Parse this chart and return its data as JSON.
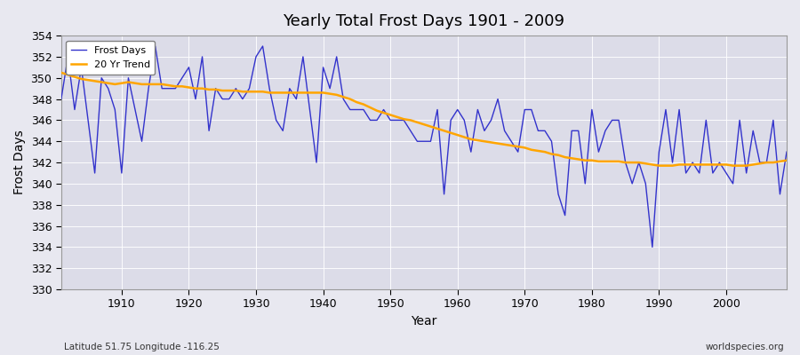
{
  "title": "Yearly Total Frost Days 1901 - 2009",
  "xlabel": "Year",
  "ylabel": "Frost Days",
  "bottom_left_text": "Latitude 51.75 Longitude -116.25",
  "bottom_right_text": "worldspecies.org",
  "legend_entries": [
    "Frost Days",
    "20 Yr Trend"
  ],
  "line_color": "#3333cc",
  "trend_color": "#FFA500",
  "bg_color": "#e8e8f0",
  "plot_bg_color": "#dcdce8",
  "ylim": [
    330,
    354
  ],
  "xlim": [
    1901,
    2009
  ],
  "yticks": [
    330,
    332,
    334,
    336,
    338,
    340,
    342,
    344,
    346,
    348,
    350,
    352,
    354
  ],
  "xticks": [
    1910,
    1920,
    1930,
    1940,
    1950,
    1960,
    1970,
    1980,
    1990,
    2000
  ],
  "years": [
    1901,
    1902,
    1903,
    1904,
    1905,
    1906,
    1907,
    1908,
    1909,
    1910,
    1911,
    1912,
    1913,
    1914,
    1915,
    1916,
    1917,
    1918,
    1919,
    1920,
    1921,
    1922,
    1923,
    1924,
    1925,
    1926,
    1927,
    1928,
    1929,
    1930,
    1931,
    1932,
    1933,
    1934,
    1935,
    1936,
    1937,
    1938,
    1939,
    1940,
    1941,
    1942,
    1943,
    1944,
    1945,
    1946,
    1947,
    1948,
    1949,
    1950,
    1951,
    1952,
    1953,
    1954,
    1955,
    1956,
    1957,
    1958,
    1959,
    1960,
    1961,
    1962,
    1963,
    1964,
    1965,
    1966,
    1967,
    1968,
    1969,
    1970,
    1971,
    1972,
    1973,
    1974,
    1975,
    1976,
    1977,
    1978,
    1979,
    1980,
    1981,
    1982,
    1983,
    1984,
    1985,
    1986,
    1987,
    1988,
    1989,
    1990,
    1991,
    1992,
    1993,
    1994,
    1995,
    1996,
    1997,
    1998,
    1999,
    2000,
    2001,
    2002,
    2003,
    2004,
    2005,
    2006,
    2007,
    2008,
    2009
  ],
  "frost_days": [
    348,
    352,
    347,
    351,
    346,
    341,
    350,
    349,
    347,
    341,
    350,
    347,
    344,
    349,
    353,
    349,
    349,
    349,
    350,
    351,
    348,
    352,
    345,
    349,
    348,
    348,
    349,
    348,
    349,
    352,
    353,
    349,
    346,
    345,
    349,
    348,
    352,
    347,
    342,
    351,
    349,
    352,
    348,
    347,
    347,
    347,
    346,
    346,
    347,
    346,
    346,
    346,
    345,
    344,
    344,
    344,
    347,
    339,
    346,
    347,
    346,
    343,
    347,
    345,
    346,
    348,
    345,
    344,
    343,
    347,
    347,
    345,
    345,
    344,
    339,
    337,
    345,
    345,
    340,
    347,
    343,
    345,
    346,
    346,
    342,
    340,
    342,
    340,
    334,
    343,
    347,
    342,
    347,
    341,
    342,
    341,
    346,
    341,
    342,
    341,
    340,
    346,
    341,
    345,
    342,
    342,
    346,
    339,
    343
  ],
  "trend_values": [
    350.5,
    350.3,
    350.1,
    349.9,
    349.8,
    349.7,
    349.6,
    349.5,
    349.4,
    349.5,
    349.6,
    349.5,
    349.4,
    349.4,
    349.4,
    349.4,
    349.3,
    349.2,
    349.2,
    349.1,
    349.0,
    349.0,
    348.9,
    348.9,
    348.8,
    348.8,
    348.8,
    348.7,
    348.7,
    348.7,
    348.7,
    348.6,
    348.6,
    348.6,
    348.6,
    348.6,
    348.6,
    348.6,
    348.6,
    348.6,
    348.5,
    348.4,
    348.2,
    348.0,
    347.7,
    347.5,
    347.2,
    346.9,
    346.7,
    346.5,
    346.3,
    346.1,
    346.0,
    345.8,
    345.6,
    345.4,
    345.2,
    345.0,
    344.8,
    344.6,
    344.4,
    344.2,
    344.1,
    344.0,
    343.9,
    343.8,
    343.7,
    343.6,
    343.5,
    343.4,
    343.2,
    343.1,
    343.0,
    342.8,
    342.7,
    342.5,
    342.4,
    342.3,
    342.2,
    342.2,
    342.1,
    342.1,
    342.1,
    342.1,
    342.0,
    342.0,
    342.0,
    341.9,
    341.8,
    341.7,
    341.7,
    341.7,
    341.8,
    341.8,
    341.8,
    341.8,
    341.8,
    341.8,
    341.8,
    341.8,
    341.7,
    341.7,
    341.7,
    341.8,
    341.9,
    342.0,
    342.0,
    342.1,
    342.2
  ]
}
